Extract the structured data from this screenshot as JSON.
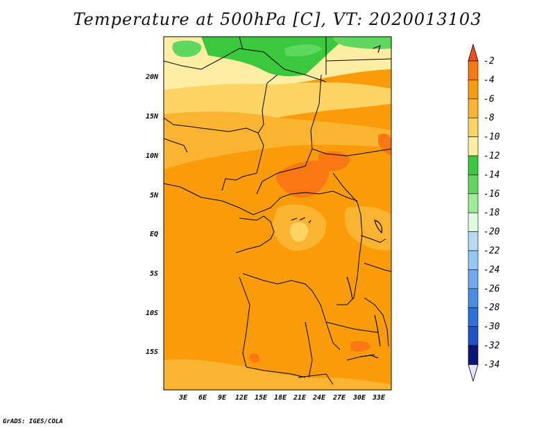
{
  "title": "Temperature at 500hPa [C], VT: 2020013103",
  "credit": "GrADS: IGES/COLA",
  "lat_labels": [
    "20N",
    "15N",
    "10N",
    "5N",
    "EQ",
    "5S",
    "10S",
    "15S"
  ],
  "lon_labels": [
    "3E",
    "6E",
    "9E",
    "12E",
    "15E",
    "18E",
    "21E",
    "24E",
    "27E",
    "30E",
    "33E"
  ],
  "colorbar": {
    "labels": [
      "-2",
      "-4",
      "-6",
      "-8",
      "-10",
      "-12",
      "-14",
      "-16",
      "-18",
      "-20",
      "-22",
      "-24",
      "-26",
      "-28",
      "-30",
      "-32",
      "-34"
    ],
    "colors": [
      "#f0501e",
      "#fa7814",
      "#fa9b0a",
      "#fbb432",
      "#fcd464",
      "#fdeea4",
      "#3cc83c",
      "#60d860",
      "#9cec9c",
      "#e0fae0",
      "#b4dcfa",
      "#96c8f5",
      "#6eaaf0",
      "#4a8ce6",
      "#3070dc",
      "#1e50c8",
      "#0c1478"
    ],
    "top_color": "#f0501e",
    "bottom_color": "#e6e6fa"
  },
  "map_colors": {
    "background": "#fa9b0a",
    "green_dark": "#3cc83c",
    "green_light": "#60d860",
    "yellow_pale": "#fdeea4",
    "yellow": "#fcd464",
    "orange_light": "#fbb432",
    "orange_red": "#fa7814",
    "red": "#f0501e"
  }
}
